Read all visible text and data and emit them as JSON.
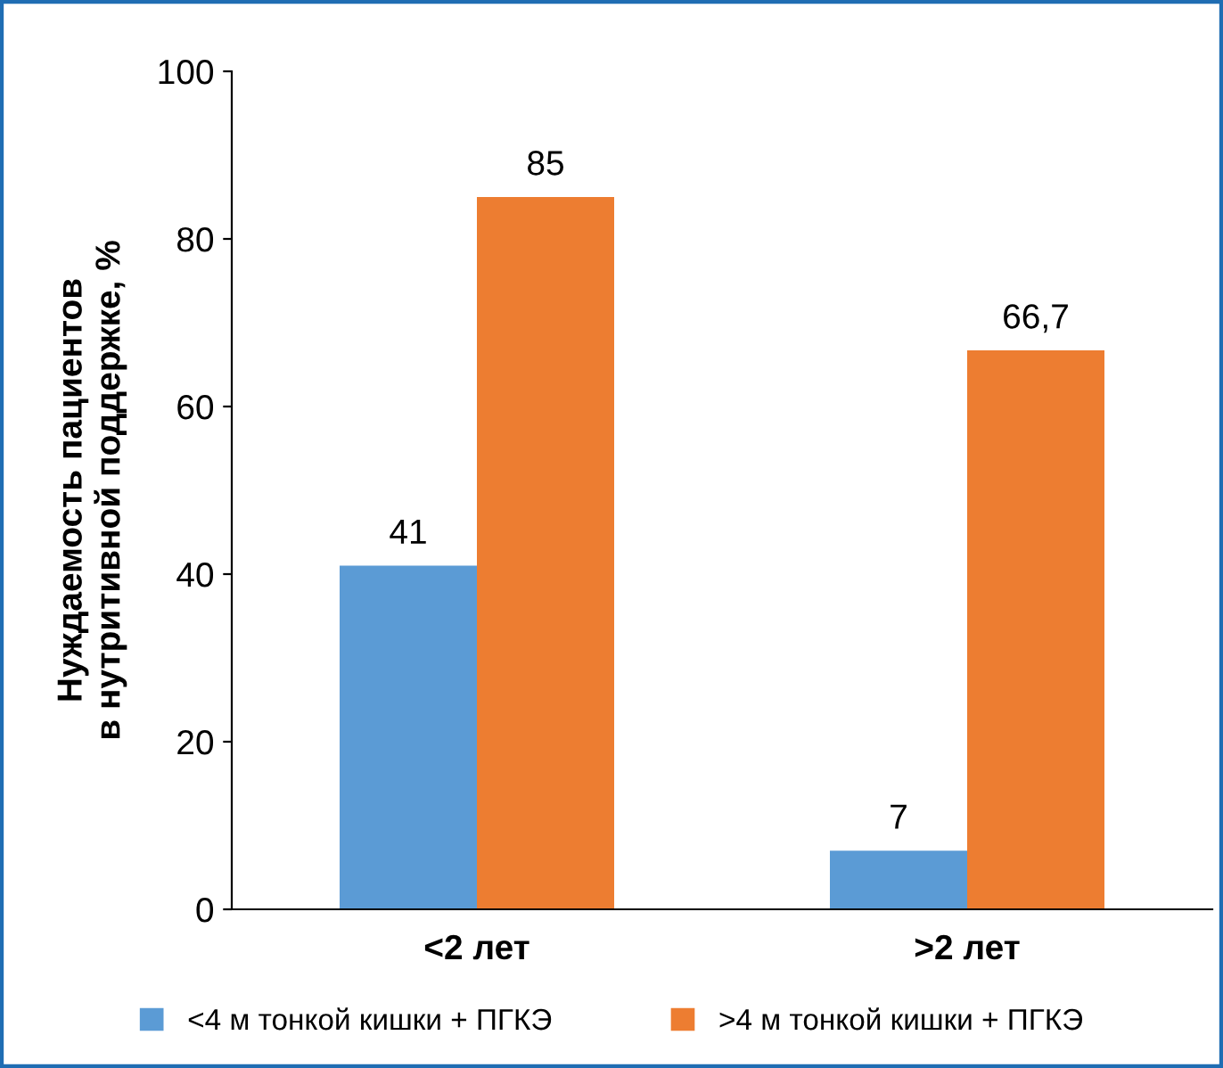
{
  "chart_data": {
    "type": "bar",
    "ylabel": "Нуждаемость пациентов\nв нутритивной поддержке, %",
    "categories": [
      "<2 лет",
      ">2 лет"
    ],
    "series": [
      {
        "name": "<4 м тонкой кишки + ПГКЭ",
        "color": "#5b9bd5",
        "values": [
          41,
          7
        ],
        "value_labels": [
          "41",
          "7"
        ]
      },
      {
        "name": ">4 м тонкой кишки + ПГКЭ",
        "color": "#ed7d31",
        "values": [
          85,
          66.7
        ],
        "value_labels": [
          "85",
          "66,7"
        ]
      }
    ],
    "ylim": [
      0,
      100
    ],
    "yticks": [
      0,
      20,
      40,
      60,
      80,
      100
    ],
    "grid": false,
    "legend": "bottom"
  }
}
